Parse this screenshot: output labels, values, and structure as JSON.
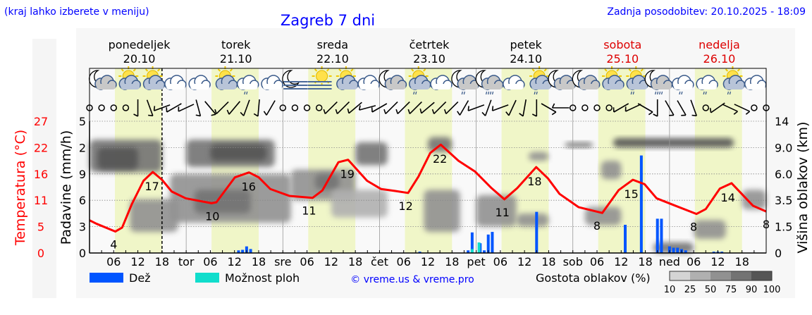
{
  "header": {
    "hint": "(kraj lahko izberete v meniju)",
    "title": "Zagreb 7 dni",
    "updated": "Zadnja posodobitev: 20.10.2025 - 18:09"
  },
  "days": [
    {
      "name": "ponedeljek",
      "date": "20.10",
      "weekend": false
    },
    {
      "name": "torek",
      "date": "21.10",
      "weekend": false
    },
    {
      "name": "sreda",
      "date": "22.10",
      "weekend": false
    },
    {
      "name": "četrtek",
      "date": "23.10",
      "weekend": false
    },
    {
      "name": "petek",
      "date": "24.10",
      "weekend": false
    },
    {
      "name": "sobota",
      "date": "25.10",
      "weekend": true
    },
    {
      "name": "nedelja",
      "date": "26.10",
      "weekend": true
    }
  ],
  "colors": {
    "title": "#0000ff",
    "weekend": "#dd0000",
    "temperature": "#ff0000",
    "rain": "#0055ff",
    "showers": "#11ddcc",
    "daylight": "#f0f6c8",
    "night": "#f9f9f9"
  },
  "legend": {
    "rain": "Dež",
    "showers": "Možnost ploh",
    "copyright": "© vreme.us & vreme.pro",
    "cloud_density": "Gostota oblakov (%)",
    "cloud_scale": [
      "10",
      "25",
      "50",
      "75",
      "90",
      "100"
    ],
    "cloud_scale_colors": [
      "#d4d4d4",
      "#b0b0b0",
      "#919191",
      "#737373",
      "#555555"
    ]
  },
  "chart_data": {
    "type": "line",
    "x_unit": "hours from Monday 20.10 00:00",
    "x_range": [
      0,
      168
    ],
    "x_tick_labels": [
      "06",
      "12",
      "18",
      "tor",
      "06",
      "12",
      "18",
      "sre",
      "06",
      "12",
      "18",
      "čet",
      "06",
      "12",
      "18",
      "pet",
      "06",
      "12",
      "18",
      "sob",
      "06",
      "12",
      "18",
      "ned",
      "06",
      "12",
      "18"
    ],
    "current_time_hour": 18,
    "daylight_hours": [
      6.3,
      18
    ],
    "grid": true,
    "temperature": {
      "ylabel": "Temperatura (°C)",
      "ylim": [
        0,
        27
      ],
      "tick_labels": [
        "27",
        "22",
        "16",
        "11",
        "5",
        "0"
      ],
      "points": [
        [
          0,
          6.7
        ],
        [
          1.7,
          6.0
        ],
        [
          6.4,
          4.4
        ],
        [
          8.1,
          5.2
        ],
        [
          10.5,
          10.0
        ],
        [
          13.4,
          14.8
        ],
        [
          15.7,
          16.6
        ],
        [
          18,
          15.0
        ],
        [
          20.4,
          12.6
        ],
        [
          23.9,
          11.2
        ],
        [
          30.3,
          10.2
        ],
        [
          31.5,
          10.4
        ],
        [
          36.1,
          15.5
        ],
        [
          39.6,
          16.5
        ],
        [
          42,
          15.5
        ],
        [
          44.9,
          13.1
        ],
        [
          49.6,
          11.7
        ],
        [
          55.4,
          11.3
        ],
        [
          57.8,
          12.8
        ],
        [
          61.8,
          18.6
        ],
        [
          64.2,
          19.1
        ],
        [
          68.9,
          14.8
        ],
        [
          72.4,
          13.1
        ],
        [
          75.9,
          12.7
        ],
        [
          79.1,
          12.3
        ],
        [
          81.7,
          15.7
        ],
        [
          84.6,
          20.5
        ],
        [
          87.2,
          22.2
        ],
        [
          91.6,
          18.9
        ],
        [
          95.7,
          16.7
        ],
        [
          99.8,
          13.3
        ],
        [
          103,
          11.0
        ],
        [
          106.2,
          13.3
        ],
        [
          110.9,
          17.6
        ],
        [
          113.8,
          15.3
        ],
        [
          116.7,
          12.1
        ],
        [
          121.4,
          9.4
        ],
        [
          127.3,
          8.2
        ],
        [
          131.4,
          12.9
        ],
        [
          134.9,
          15.0
        ],
        [
          137.8,
          14.1
        ],
        [
          140.8,
          11.2
        ],
        [
          145.4,
          9.7
        ],
        [
          150.7,
          8.0
        ],
        [
          153,
          9.0
        ],
        [
          156.5,
          13.2
        ],
        [
          159.4,
          14.3
        ],
        [
          164.7,
          9.7
        ],
        [
          168.3,
          8.5
        ]
      ],
      "labels": [
        [
          6,
          "4",
          "min"
        ],
        [
          15.5,
          "17",
          "max"
        ],
        [
          30.5,
          "10",
          "min"
        ],
        [
          39.5,
          "16",
          "max"
        ],
        [
          54.5,
          "11",
          "min"
        ],
        [
          64,
          "19",
          "max"
        ],
        [
          78.5,
          "12",
          "min"
        ],
        [
          87,
          "22",
          "max"
        ],
        [
          102.5,
          "11",
          "min"
        ],
        [
          110.5,
          "18",
          "max"
        ],
        [
          126,
          "8",
          "min"
        ],
        [
          134.5,
          "15",
          "max"
        ],
        [
          150,
          "8",
          "min"
        ],
        [
          158.5,
          "14",
          "max"
        ],
        [
          168,
          "8",
          "min"
        ]
      ]
    },
    "precipitation": {
      "ylabel": "Padavine (mm/h)",
      "ylim": [
        0,
        5
      ],
      "tick_labels": [
        "5",
        "2",
        "9",
        "6",
        "3",
        "0"
      ],
      "rain": [
        [
          37,
          0.1
        ],
        [
          38,
          0.12
        ],
        [
          39,
          0.25
        ],
        [
          40,
          0.15
        ],
        [
          82,
          0.05
        ],
        [
          94,
          0.1
        ],
        [
          95,
          0.78
        ],
        [
          97,
          0.37
        ],
        [
          98,
          0.1
        ],
        [
          99,
          0.7
        ],
        [
          100,
          0.8
        ],
        [
          111,
          1.56
        ],
        [
          133,
          1.07
        ],
        [
          137,
          3.7
        ],
        [
          141,
          1.3
        ],
        [
          142,
          1.3
        ],
        [
          144,
          0.25
        ],
        [
          145,
          0.2
        ],
        [
          146,
          0.2
        ],
        [
          147,
          0.15
        ],
        [
          148,
          0.1
        ],
        [
          155,
          0.05
        ],
        [
          156,
          0.05
        ],
        [
          157,
          0.05
        ]
      ],
      "showers": [
        [
          95,
          0.15
        ],
        [
          96,
          0.4
        ]
      ]
    },
    "cloud_height": {
      "ylabel": "Višina oblakov (km)",
      "tick_values": [
        0,
        1.5,
        3.5,
        6.0,
        9.0,
        14
      ],
      "tick_labels": [
        "0",
        "1.5",
        "3.5",
        "6.0",
        "9.0",
        "14"
      ],
      "layers": [
        {
          "h": [
            0,
            18
          ],
          "km": [
            6.2,
            10.5
          ],
          "density": 75
        },
        {
          "h": [
            2,
            12
          ],
          "km": [
            6.5,
            9.0
          ],
          "density": 90
        },
        {
          "h": [
            10,
            22
          ],
          "km": [
            1.2,
            3.6
          ],
          "density": 60
        },
        {
          "h": [
            24,
            46
          ],
          "km": [
            6.8,
            10.5
          ],
          "density": 75
        },
        {
          "h": [
            30,
            44
          ],
          "km": [
            7.5,
            9.5
          ],
          "density": 90
        },
        {
          "h": [
            20,
            50
          ],
          "km": [
            1.8,
            6.0
          ],
          "density": 50
        },
        {
          "h": [
            26,
            40
          ],
          "km": [
            2.5,
            4.5
          ],
          "density": 75
        },
        {
          "h": [
            50,
            66
          ],
          "km": [
            3.5,
            6.5
          ],
          "density": 50
        },
        {
          "h": [
            56,
            62
          ],
          "km": [
            4.5,
            6.0
          ],
          "density": 75
        },
        {
          "h": [
            66,
            74
          ],
          "km": [
            7.0,
            10.0
          ],
          "density": 80
        },
        {
          "h": [
            60,
            74
          ],
          "km": [
            2.2,
            4.5
          ],
          "density": 25
        },
        {
          "h": [
            83,
            92
          ],
          "km": [
            1.2,
            4.5
          ],
          "density": 60
        },
        {
          "h": [
            84,
            90
          ],
          "km": [
            8.5,
            11.0
          ],
          "density": 75
        },
        {
          "h": [
            96,
            106
          ],
          "km": [
            1.5,
            4.0
          ],
          "density": 60
        },
        {
          "h": [
            106,
            114
          ],
          "km": [
            1.5,
            2.5
          ],
          "density": 50
        },
        {
          "h": [
            109,
            114
          ],
          "km": [
            7.5,
            8.5
          ],
          "density": 50
        },
        {
          "h": [
            118,
            125
          ],
          "km": [
            9.0,
            10.0
          ],
          "density": 75
        },
        {
          "h": [
            123,
            132
          ],
          "km": [
            1.6,
            3.0
          ],
          "density": 50
        },
        {
          "h": [
            127,
            132
          ],
          "km": [
            5.5,
            7.5
          ],
          "density": 50
        },
        {
          "h": [
            130,
            160
          ],
          "km": [
            9.0,
            10.8
          ],
          "density": 90
        },
        {
          "h": [
            150,
            158
          ],
          "km": [
            0.8,
            2.0
          ],
          "density": 60
        },
        {
          "h": [
            140,
            150
          ],
          "km": [
            0.0,
            0.6
          ],
          "density": 75
        },
        {
          "h": [
            162,
            168
          ],
          "km": [
            2.8,
            4.5
          ],
          "density": 60
        }
      ]
    }
  },
  "weather_icons": [
    "moon-cloud",
    "sun-cloud",
    "sun-cloud",
    "cloudy",
    "cloudy",
    "sun-cloud",
    "cloud-light-rain",
    "cloudy",
    "moon-fog",
    "sun-fog",
    "sun-cloud",
    "cloudy",
    "moon-cloud",
    "sun-cloud-light-rain",
    "cloudy",
    "moon-cloud-light-rain",
    "moon-cloud-rain",
    "cloudy",
    "sun-cloud-light-rain",
    "moon-cloud",
    "moon-cloud",
    "sun-cloud",
    "sun-cloud-light-rain",
    "moon-cloud-rain",
    "cloud-light-rain",
    "cloud-light-rain",
    "sun-cloud-light-rain",
    "cloudy"
  ],
  "wind": [
    "calm",
    "calm",
    "calm",
    "calm",
    0,
    -20,
    70,
    60,
    65,
    -15,
    -40,
    45,
    40,
    20,
    5,
    30,
    "calm",
    "calm",
    "calm",
    "calm",
    45,
    45,
    50,
    75,
    60,
    45,
    45,
    45,
    50,
    45,
    45,
    30,
    70,
    20,
    70,
    25,
    10,
    0,
    -60,
    90,
    "calm",
    "calm",
    "calm",
    "calm",
    60,
    65,
    -60,
    0,
    -30,
    -30,
    -20,
    "calm",
    55,
    -65,
    -65,
    "calm",
    "calm"
  ]
}
